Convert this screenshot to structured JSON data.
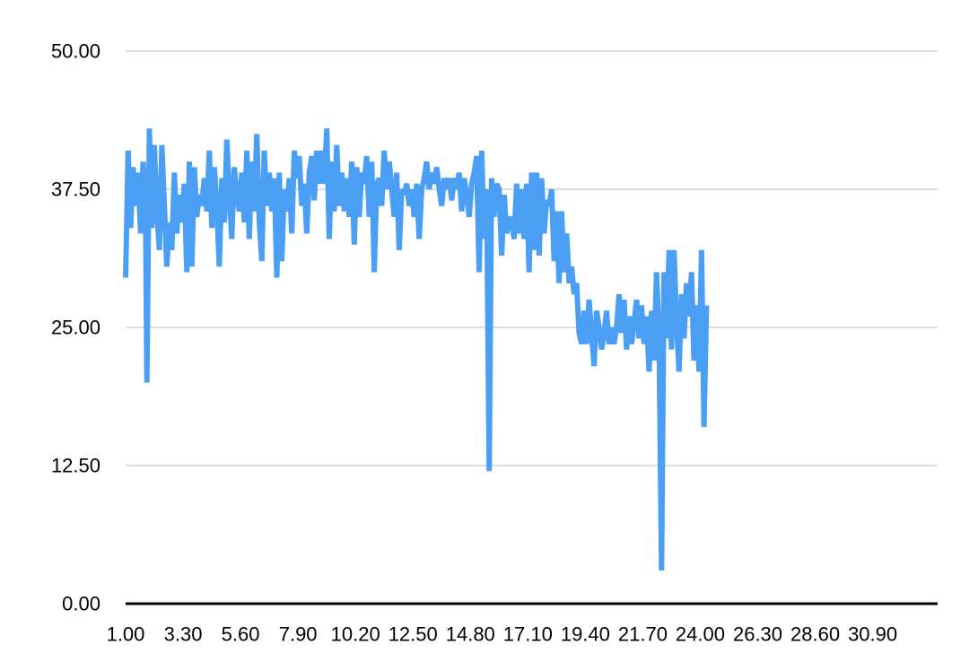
{
  "chart_data": {
    "type": "line",
    "title": "",
    "xlabel": "",
    "ylabel": "",
    "grid": true,
    "ylim": [
      0,
      50
    ],
    "xlim": [
      1.0,
      33.5
    ],
    "y_ticks": [
      "0.00",
      "12.50",
      "25.00",
      "37.50",
      "50.00"
    ],
    "x_ticks": [
      "1.00",
      "3.30",
      "5.60",
      "7.90",
      "10.20",
      "12.50",
      "14.80",
      "17.10",
      "19.40",
      "21.70",
      "24.00",
      "26.30",
      "28.60",
      "30.90"
    ],
    "series": [
      {
        "color": "#4a9ff5",
        "points": [
          [
            1.0,
            29.5
          ],
          [
            1.1,
            41.0
          ],
          [
            1.2,
            34.0
          ],
          [
            1.3,
            39.5
          ],
          [
            1.4,
            36.0
          ],
          [
            1.5,
            39.0
          ],
          [
            1.6,
            33.5
          ],
          [
            1.7,
            40.0
          ],
          [
            1.8,
            35.0
          ],
          [
            1.85,
            20.0
          ],
          [
            1.95,
            43.0
          ],
          [
            2.05,
            34.0
          ],
          [
            2.15,
            41.5
          ],
          [
            2.25,
            35.5
          ],
          [
            2.35,
            32.0
          ],
          [
            2.45,
            41.5
          ],
          [
            2.55,
            36.0
          ],
          [
            2.65,
            30.5
          ],
          [
            2.75,
            34.5
          ],
          [
            2.85,
            32.0
          ],
          [
            2.95,
            39.0
          ],
          [
            3.05,
            33.5
          ],
          [
            3.15,
            37.0
          ],
          [
            3.25,
            34.5
          ],
          [
            3.35,
            38.0
          ],
          [
            3.45,
            30.0
          ],
          [
            3.55,
            40.0
          ],
          [
            3.65,
            30.5
          ],
          [
            3.75,
            39.5
          ],
          [
            3.85,
            35.0
          ],
          [
            3.95,
            37.0
          ],
          [
            4.05,
            36.0
          ],
          [
            4.15,
            38.5
          ],
          [
            4.25,
            35.5
          ],
          [
            4.35,
            41.0
          ],
          [
            4.45,
            34.0
          ],
          [
            4.55,
            39.5
          ],
          [
            4.65,
            36.0
          ],
          [
            4.75,
            30.5
          ],
          [
            4.85,
            38.5
          ],
          [
            4.95,
            34.5
          ],
          [
            5.05,
            42.0
          ],
          [
            5.15,
            37.0
          ],
          [
            5.25,
            33.0
          ],
          [
            5.35,
            39.5
          ],
          [
            5.45,
            37.0
          ],
          [
            5.55,
            35.5
          ],
          [
            5.65,
            39.0
          ],
          [
            5.75,
            34.5
          ],
          [
            5.85,
            41.0
          ],
          [
            5.95,
            33.0
          ],
          [
            6.05,
            40.0
          ],
          [
            6.15,
            35.5
          ],
          [
            6.25,
            42.5
          ],
          [
            6.35,
            34.5
          ],
          [
            6.45,
            31.0
          ],
          [
            6.55,
            41.0
          ],
          [
            6.65,
            36.0
          ],
          [
            6.75,
            39.0
          ],
          [
            6.85,
            35.5
          ],
          [
            6.95,
            38.5
          ],
          [
            7.05,
            29.5
          ],
          [
            7.15,
            39.0
          ],
          [
            7.25,
            31.0
          ],
          [
            7.35,
            37.5
          ],
          [
            7.45,
            35.5
          ],
          [
            7.55,
            38.5
          ],
          [
            7.65,
            33.5
          ],
          [
            7.75,
            41.0
          ],
          [
            7.85,
            38.5
          ],
          [
            7.95,
            40.5
          ],
          [
            8.05,
            36.0
          ],
          [
            8.15,
            38.0
          ],
          [
            8.25,
            33.5
          ],
          [
            8.35,
            39.0
          ],
          [
            8.45,
            40.5
          ],
          [
            8.55,
            36.5
          ],
          [
            8.65,
            41.0
          ],
          [
            8.75,
            38.0
          ],
          [
            8.85,
            41.0
          ],
          [
            8.95,
            38.0
          ],
          [
            9.05,
            43.0
          ],
          [
            9.15,
            33.0
          ],
          [
            9.25,
            40.0
          ],
          [
            9.35,
            35.5
          ],
          [
            9.45,
            41.5
          ],
          [
            9.55,
            36.0
          ],
          [
            9.65,
            39.0
          ],
          [
            9.75,
            35.5
          ],
          [
            9.85,
            38.5
          ],
          [
            9.95,
            35.0
          ],
          [
            10.05,
            40.0
          ],
          [
            10.15,
            32.5
          ],
          [
            10.25,
            39.5
          ],
          [
            10.35,
            35.0
          ],
          [
            10.45,
            39.0
          ],
          [
            10.55,
            38.0
          ],
          [
            10.65,
            40.5
          ],
          [
            10.75,
            35.0
          ],
          [
            10.85,
            40.0
          ],
          [
            10.95,
            30.0
          ],
          [
            11.05,
            38.0
          ],
          [
            11.15,
            38.5
          ],
          [
            11.25,
            36.0
          ],
          [
            11.35,
            41.0
          ],
          [
            11.45,
            37.5
          ],
          [
            11.55,
            40.0
          ],
          [
            11.65,
            37.5
          ],
          [
            11.75,
            35.0
          ],
          [
            11.85,
            39.0
          ],
          [
            11.95,
            32.0
          ],
          [
            12.05,
            37.5
          ],
          [
            12.15,
            37.0
          ],
          [
            12.25,
            38.0
          ],
          [
            12.35,
            36.0
          ],
          [
            12.45,
            37.5
          ],
          [
            12.55,
            35.0
          ],
          [
            12.65,
            38.0
          ],
          [
            12.75,
            33.0
          ],
          [
            12.85,
            37.5
          ],
          [
            12.95,
            38.5
          ],
          [
            13.05,
            40.0
          ],
          [
            13.15,
            37.5
          ],
          [
            13.25,
            39.0
          ],
          [
            13.35,
            38.0
          ],
          [
            13.45,
            39.5
          ],
          [
            13.55,
            37.5
          ],
          [
            13.65,
            36.0
          ],
          [
            13.75,
            38.5
          ],
          [
            13.85,
            37.5
          ],
          [
            13.95,
            38.5
          ],
          [
            14.05,
            36.5
          ],
          [
            14.15,
            38.5
          ],
          [
            14.25,
            37.5
          ],
          [
            14.35,
            39.0
          ],
          [
            14.45,
            35.5
          ],
          [
            14.55,
            38.5
          ],
          [
            14.65,
            37.0
          ],
          [
            14.75,
            35.0
          ],
          [
            14.85,
            38.0
          ],
          [
            14.95,
            39.0
          ],
          [
            15.05,
            40.5
          ],
          [
            15.15,
            30.0
          ],
          [
            15.25,
            41.0
          ],
          [
            15.35,
            33.0
          ],
          [
            15.45,
            37.5
          ],
          [
            15.55,
            12.0
          ],
          [
            15.65,
            38.5
          ],
          [
            15.75,
            35.0
          ],
          [
            15.85,
            38.0
          ],
          [
            15.95,
            37.5
          ],
          [
            16.05,
            31.5
          ],
          [
            16.15,
            37.0
          ],
          [
            16.25,
            33.5
          ],
          [
            16.35,
            35.0
          ],
          [
            16.45,
            34.5
          ],
          [
            16.55,
            33.0
          ],
          [
            16.65,
            38.0
          ],
          [
            16.75,
            33.5
          ],
          [
            16.85,
            37.5
          ],
          [
            16.95,
            33.0
          ],
          [
            17.05,
            38.0
          ],
          [
            17.15,
            30.0
          ],
          [
            17.25,
            39.0
          ],
          [
            17.35,
            32.0
          ],
          [
            17.45,
            39.0
          ],
          [
            17.55,
            31.5
          ],
          [
            17.65,
            38.5
          ],
          [
            17.75,
            33.5
          ],
          [
            17.85,
            36.5
          ],
          [
            17.95,
            36.0
          ],
          [
            18.05,
            37.5
          ],
          [
            18.15,
            31.0
          ],
          [
            18.25,
            35.5
          ],
          [
            18.35,
            29.0
          ],
          [
            18.45,
            35.5
          ],
          [
            18.55,
            30.0
          ],
          [
            18.65,
            33.5
          ],
          [
            18.75,
            29.0
          ],
          [
            18.85,
            30.5
          ],
          [
            18.95,
            28.0
          ],
          [
            19.05,
            29.0
          ],
          [
            19.15,
            24.5
          ],
          [
            19.25,
            23.5
          ],
          [
            19.35,
            26.5
          ],
          [
            19.45,
            23.5
          ],
          [
            19.55,
            27.5
          ],
          [
            19.65,
            24.5
          ],
          [
            19.75,
            21.5
          ],
          [
            19.85,
            26.5
          ],
          [
            19.95,
            25.0
          ],
          [
            20.05,
            23.0
          ],
          [
            20.15,
            24.5
          ],
          [
            20.25,
            26.5
          ],
          [
            20.35,
            23.5
          ],
          [
            20.45,
            25.0
          ],
          [
            20.55,
            23.5
          ],
          [
            20.65,
            25.0
          ],
          [
            20.75,
            28.0
          ],
          [
            20.85,
            24.5
          ],
          [
            20.95,
            27.5
          ],
          [
            21.05,
            23.0
          ],
          [
            21.15,
            26.0
          ],
          [
            21.25,
            23.5
          ],
          [
            21.35,
            25.5
          ],
          [
            21.45,
            27.5
          ],
          [
            21.55,
            24.0
          ],
          [
            21.65,
            27.0
          ],
          [
            21.75,
            23.5
          ],
          [
            21.85,
            26.0
          ],
          [
            21.95,
            21.0
          ],
          [
            22.05,
            26.5
          ],
          [
            22.15,
            22.0
          ],
          [
            22.25,
            30.0
          ],
          [
            22.35,
            24.5
          ],
          [
            22.45,
            3.0
          ],
          [
            22.55,
            30.0
          ],
          [
            22.65,
            24.0
          ],
          [
            22.75,
            32.0
          ],
          [
            22.85,
            23.0
          ],
          [
            22.95,
            32.0
          ],
          [
            23.05,
            25.5
          ],
          [
            23.15,
            21.0
          ],
          [
            23.25,
            28.0
          ],
          [
            23.35,
            24.0
          ],
          [
            23.45,
            29.0
          ],
          [
            23.55,
            26.0
          ],
          [
            23.65,
            30.0
          ],
          [
            23.75,
            22.0
          ],
          [
            23.85,
            27.0
          ],
          [
            23.95,
            21.0
          ],
          [
            24.05,
            32.0
          ],
          [
            24.15,
            16.0
          ],
          [
            24.25,
            27.0
          ]
        ]
      }
    ]
  }
}
